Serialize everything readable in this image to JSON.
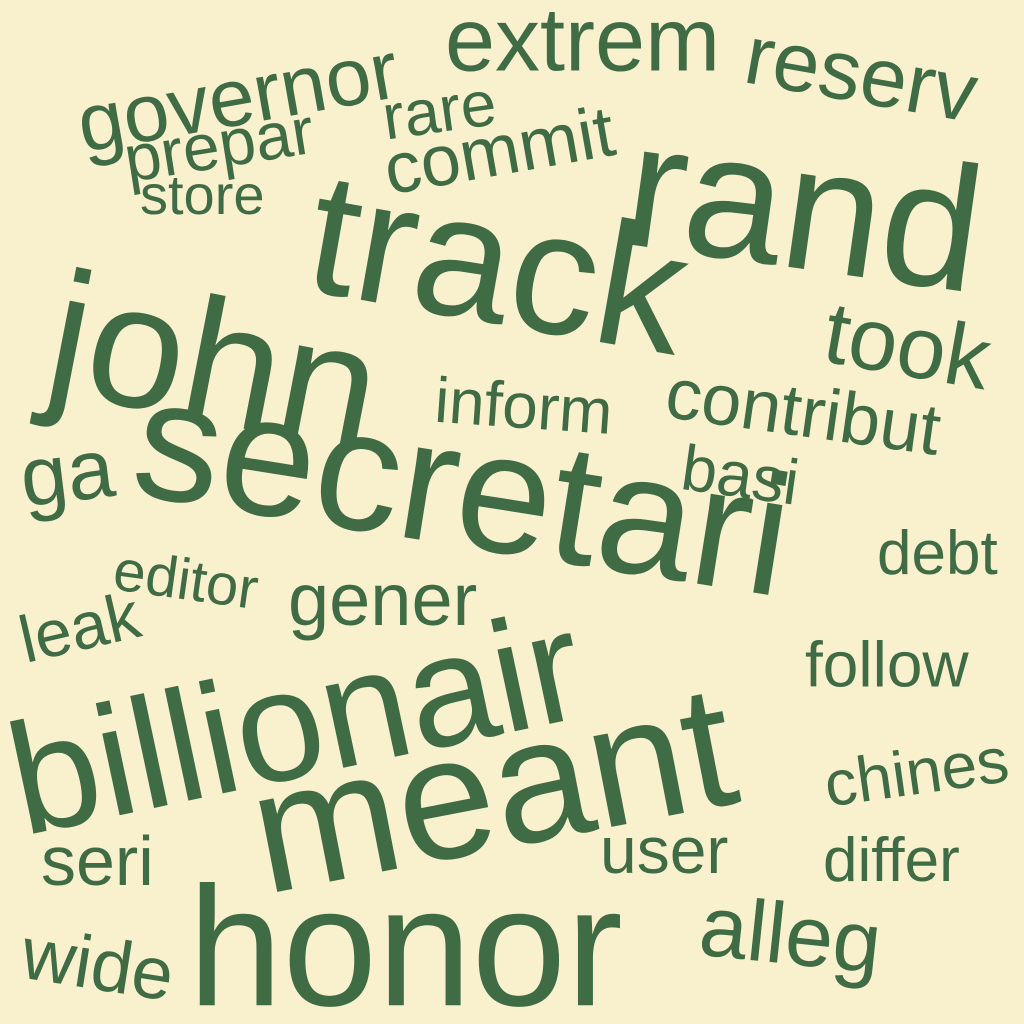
{
  "colors": {
    "background": "#f9f0ce",
    "word": "#3f6b45"
  },
  "words": [
    "governor",
    "extrem",
    "reserv",
    "prepar",
    "rare",
    "commit",
    "store",
    "rand",
    "track",
    "john",
    "took",
    "inform",
    "contribut",
    "secretari",
    "ga",
    "basi",
    "debt",
    "editor",
    "gener",
    "leak",
    "billionair",
    "follow",
    "meant",
    "chines",
    "seri",
    "user",
    "differ",
    "honor",
    "alleg",
    "wide"
  ]
}
